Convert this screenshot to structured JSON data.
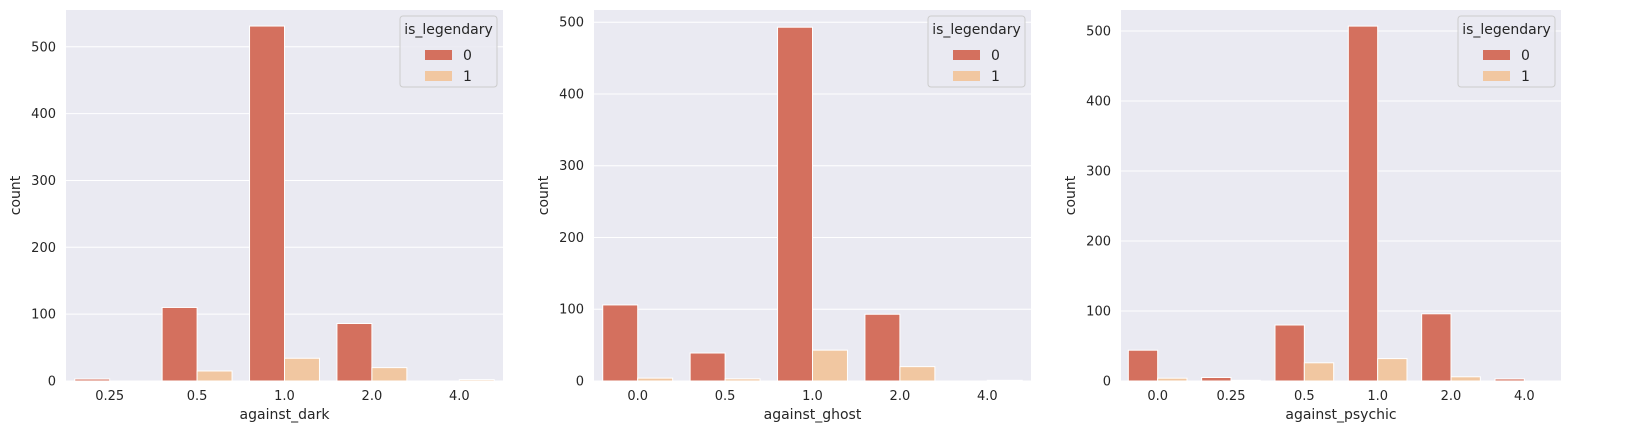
{
  "colors": {
    "background": "#eaeaf2",
    "grid": "#ffffff",
    "series_0": "#d4705e",
    "series_1": "#f1c7a1"
  },
  "chart_data": [
    {
      "type": "bar",
      "xlabel": "against_dark",
      "ylabel": "count",
      "categories": [
        "0.25",
        "0.5",
        "1.0",
        "2.0",
        "4.0"
      ],
      "ylim": [
        0,
        555
      ],
      "yticks": [
        0,
        100,
        200,
        300,
        400,
        500
      ],
      "grid": true,
      "legend": {
        "title": "is_legendary",
        "placement": "top-right"
      },
      "series": [
        {
          "name": "0",
          "values": [
            3,
            110,
            531,
            86,
            0
          ]
        },
        {
          "name": "1",
          "values": [
            0,
            15,
            34,
            20,
            2
          ]
        }
      ]
    },
    {
      "type": "bar",
      "xlabel": "against_ghost",
      "ylabel": "count",
      "categories": [
        "0.0",
        "0.5",
        "1.0",
        "2.0",
        "4.0"
      ],
      "ylim": [
        0,
        517
      ],
      "yticks": [
        0,
        100,
        200,
        300,
        400,
        500
      ],
      "grid": true,
      "legend": {
        "title": "is_legendary",
        "placement": "top-right"
      },
      "series": [
        {
          "name": "0",
          "values": [
            106,
            39,
            493,
            93,
            0
          ]
        },
        {
          "name": "1",
          "values": [
            4,
            3,
            43,
            20,
            1
          ]
        }
      ]
    },
    {
      "type": "bar",
      "xlabel": "against_psychic",
      "ylabel": "count",
      "categories": [
        "0.0",
        "0.25",
        "0.5",
        "1.0",
        "2.0",
        "4.0"
      ],
      "ylim": [
        0,
        530
      ],
      "yticks": [
        0,
        100,
        200,
        300,
        400,
        500
      ],
      "grid": true,
      "legend": {
        "title": "is_legendary",
        "placement": "top-right"
      },
      "series": [
        {
          "name": "0",
          "values": [
            44,
            5,
            80,
            507,
            96,
            3
          ]
        },
        {
          "name": "1",
          "values": [
            4,
            1,
            26,
            32,
            6,
            0
          ]
        }
      ]
    }
  ]
}
